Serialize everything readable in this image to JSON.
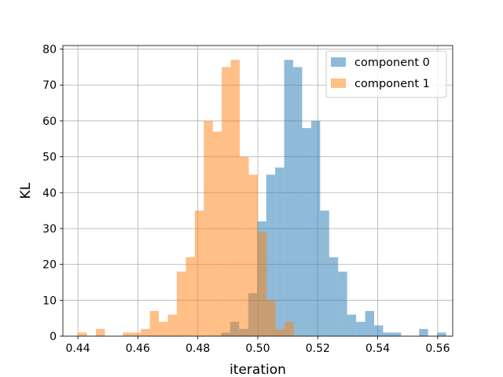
{
  "chart_data": {
    "type": "bar",
    "subtype": "histogram",
    "title": "",
    "xlabel": "iteration",
    "ylabel": "KL",
    "xlim": [
      0.435,
      0.565
    ],
    "ylim": [
      0,
      81
    ],
    "grid": true,
    "legend_position": "top-right",
    "xticks": [
      "0.44",
      "0.46",
      "0.48",
      "0.50",
      "0.52",
      "0.54",
      "0.56"
    ],
    "xtick_values": [
      0.44,
      0.46,
      0.48,
      0.5,
      0.52,
      0.54,
      0.56
    ],
    "yticks": [
      "0",
      "10",
      "20",
      "30",
      "40",
      "50",
      "60",
      "70",
      "80"
    ],
    "ytick_values": [
      0,
      10,
      20,
      30,
      40,
      50,
      60,
      70,
      80
    ],
    "bin_width": 0.003,
    "series": [
      {
        "name": "component 0",
        "color": "#1f77b4",
        "alpha": 0.5,
        "bin_start": 0.4878,
        "counts": [
          1,
          4,
          2,
          12,
          32,
          45,
          47,
          77,
          75,
          58,
          60,
          35,
          22,
          18,
          6,
          4,
          7,
          3,
          1,
          1,
          0,
          0,
          2,
          0,
          1
        ]
      },
      {
        "name": "component 1",
        "color": "#ff7f0e",
        "alpha": 0.5,
        "bin_start": 0.44,
        "counts": [
          1,
          0,
          2,
          0,
          0,
          1,
          1,
          2,
          7,
          4,
          6,
          18,
          22,
          35,
          60,
          57,
          75,
          77,
          50,
          45,
          29,
          10,
          2,
          4
        ]
      }
    ]
  }
}
